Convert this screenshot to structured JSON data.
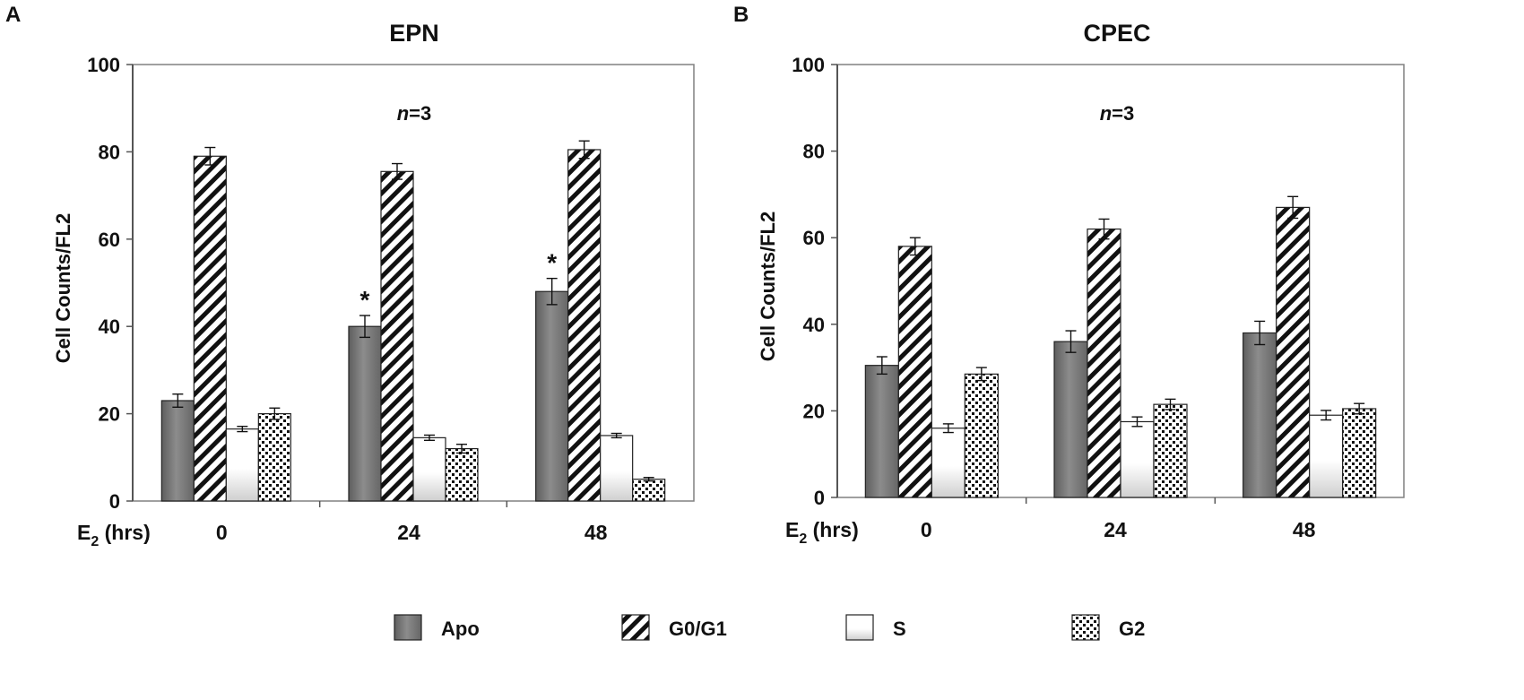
{
  "chart_data": [
    {
      "panel_label": "A",
      "type": "bar",
      "title": "EPN",
      "annotation": {
        "n_italic": "n",
        "n_rest": "=3"
      },
      "xlabel": {
        "prefix": "E",
        "subscript": "2",
        "suffix": " (hrs)"
      },
      "ylabel": "Cell Counts/FL2",
      "ylim": [
        0,
        100
      ],
      "yticks": [
        0,
        20,
        40,
        60,
        80,
        100
      ],
      "categories": [
        "0",
        "24",
        "48"
      ],
      "series": [
        {
          "name": "Apo",
          "values": [
            23,
            40,
            48
          ],
          "errors": [
            1.5,
            2.5,
            3.0
          ]
        },
        {
          "name": "G0/G1",
          "values": [
            79,
            75.5,
            80.5
          ],
          "errors": [
            2.0,
            1.8,
            2.0
          ]
        },
        {
          "name": "S",
          "values": [
            16.5,
            14.5,
            15
          ],
          "errors": [
            0.6,
            0.6,
            0.5
          ]
        },
        {
          "name": "G2",
          "values": [
            20,
            12,
            5
          ],
          "errors": [
            1.3,
            1.0,
            0.4
          ]
        }
      ],
      "significance": [
        {
          "category": "24",
          "series": "Apo",
          "mark": "*"
        },
        {
          "category": "48",
          "series": "Apo",
          "mark": "*"
        }
      ]
    },
    {
      "panel_label": "B",
      "type": "bar",
      "title": "CPEC",
      "annotation": {
        "n_italic": "n",
        "n_rest": "=3"
      },
      "xlabel": {
        "prefix": "E",
        "subscript": "2",
        "suffix": " (hrs)"
      },
      "ylabel": "Cell Counts/FL2",
      "ylim": [
        0,
        100
      ],
      "yticks": [
        0,
        20,
        40,
        60,
        80,
        100
      ],
      "categories": [
        "0",
        "24",
        "48"
      ],
      "series": [
        {
          "name": "Apo",
          "values": [
            30.5,
            36,
            38
          ],
          "errors": [
            2.0,
            2.5,
            2.7
          ]
        },
        {
          "name": "G0/G1",
          "values": [
            58,
            62,
            67
          ],
          "errors": [
            2.0,
            2.3,
            2.5
          ]
        },
        {
          "name": "S",
          "values": [
            16,
            17.5,
            19
          ],
          "errors": [
            1.0,
            1.1,
            1.1
          ]
        },
        {
          "name": "G2",
          "values": [
            28.5,
            21.5,
            20.5
          ],
          "errors": [
            1.5,
            1.2,
            1.2
          ]
        }
      ],
      "significance": []
    }
  ],
  "legend": [
    "Apo",
    "G0/G1",
    "S",
    "G2"
  ]
}
